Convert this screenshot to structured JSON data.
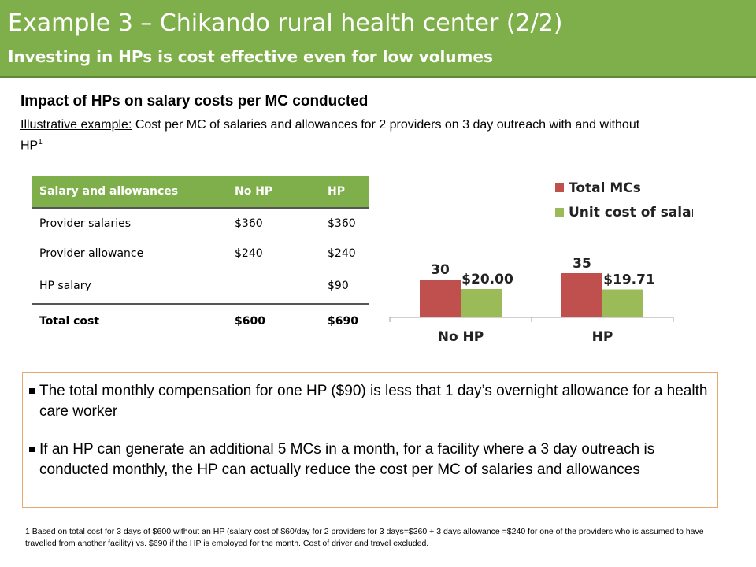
{
  "slide": {
    "title": "Example 3 – Chikando rural health center  (2/2)",
    "subtitle": "Investing in HPs is cost effective even for low volumes",
    "heading": "Impact of HPs on salary costs per MC conducted",
    "sub_label": "Illustrative example:",
    "sub_text": " Cost per MC of salaries and allowances for 2 providers on 3 day outreach with and without HP",
    "sub_sup": "1"
  },
  "table": {
    "headers": [
      "Salary and allowances",
      "No HP",
      "HP"
    ],
    "rows": [
      [
        "Provider salaries",
        "$360",
        "$360"
      ],
      [
        "Provider allowance",
        "$240",
        "$240"
      ],
      [
        "HP salary",
        "",
        "$90"
      ]
    ],
    "total": [
      "Total cost",
      "$600",
      "$690"
    ]
  },
  "colors": {
    "header_green": "#7faf4a",
    "bar_red": "#c0504d",
    "bar_green": "#9bbb59",
    "box_border": "#e5a870"
  },
  "chart_data": {
    "type": "bar",
    "categories": [
      "No HP",
      "HP"
    ],
    "series": [
      {
        "name": "Total MCs",
        "values": [
          30,
          35
        ],
        "labels": [
          "30",
          "35"
        ],
        "color": "#c0504d"
      },
      {
        "name": "Unit cost of salaries",
        "values": [
          20.0,
          19.71
        ],
        "labels": [
          "$20.00",
          "$19.71"
        ],
        "color": "#9bbb59"
      }
    ],
    "legend": "top-right",
    "grid": false
  },
  "bullets": [
    "The total monthly compensation for one HP ($90) is less that 1 day’s overnight allowance for a health care worker",
    "If an HP can generate an additional 5 MCs in a month, for a facility where a 3 day outreach is conducted monthly, the HP can actually reduce the cost per MC of salaries and allowances"
  ],
  "footnote": "1 Based on total cost for 3 days of $600 without an HP (salary cost of $60/day for 2 providers for 3 days=$360 + 3 days allowance =$240  for one of the providers who is assumed to have travelled from another facility) vs. $690 if the HP is employed for the month. Cost of driver and travel excluded."
}
